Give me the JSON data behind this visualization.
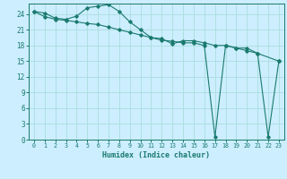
{
  "title": "",
  "xlabel": "Humidex (Indice chaleur)",
  "bg_color": "#cceeff",
  "line_color": "#1a7a6e",
  "grid_color": "#aadddd",
  "xlim": [
    -0.5,
    23.5
  ],
  "ylim": [
    0,
    26
  ],
  "xticks": [
    0,
    1,
    2,
    3,
    4,
    5,
    6,
    7,
    8,
    9,
    10,
    11,
    12,
    13,
    14,
    15,
    16,
    17,
    18,
    19,
    20,
    21,
    22,
    23
  ],
  "yticks": [
    0,
    3,
    6,
    9,
    12,
    15,
    18,
    21,
    24
  ],
  "series1_x": [
    0,
    1,
    2,
    3,
    4,
    5,
    6,
    7,
    8,
    9,
    10,
    11,
    12,
    13,
    14,
    15,
    16,
    17,
    18,
    19,
    20,
    21,
    23
  ],
  "series1_y": [
    24.5,
    24.2,
    23.2,
    23.0,
    23.6,
    25.2,
    25.5,
    25.8,
    24.5,
    22.5,
    21.0,
    19.5,
    19.3,
    18.3,
    18.9,
    18.9,
    18.5,
    18.0,
    18.0,
    17.5,
    17.5,
    16.5,
    15.0
  ],
  "series2_x": [
    0,
    1,
    2,
    3,
    4,
    5,
    6,
    7,
    8,
    9,
    10,
    11,
    12,
    13,
    14,
    15,
    16,
    17,
    18,
    19,
    20,
    21,
    22,
    23
  ],
  "series2_y": [
    24.5,
    23.5,
    23.0,
    22.8,
    22.5,
    22.2,
    22.0,
    21.5,
    21.0,
    20.5,
    20.0,
    19.5,
    19.0,
    18.8,
    18.5,
    18.5,
    18.0,
    0.5,
    18.0,
    17.5,
    17.0,
    16.5,
    0.5,
    15.0
  ]
}
